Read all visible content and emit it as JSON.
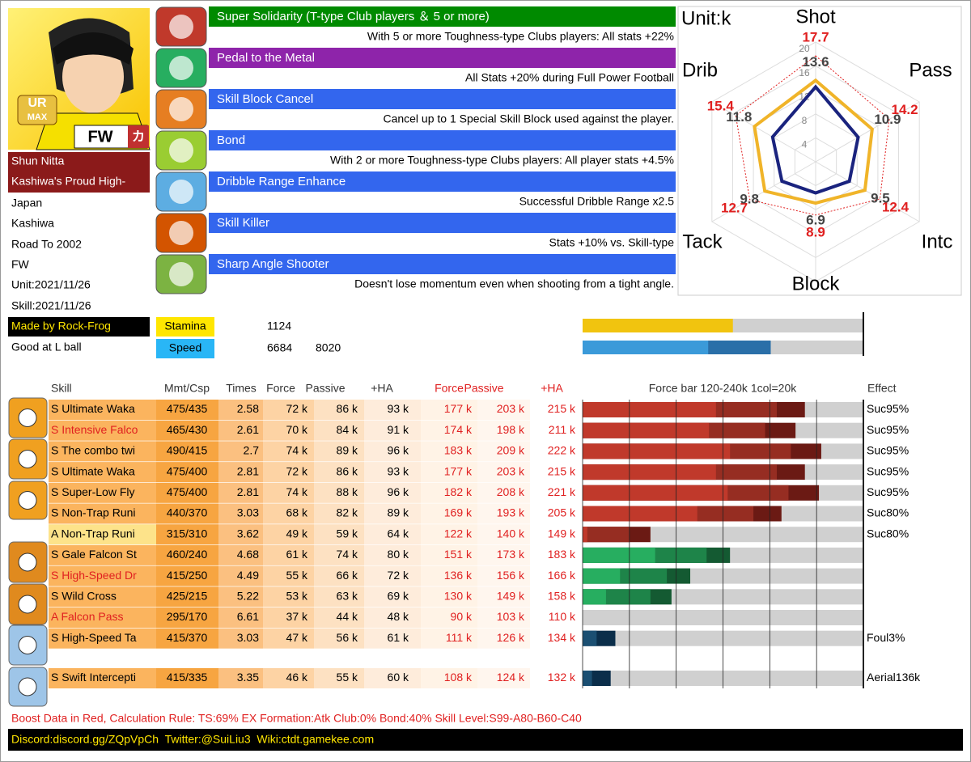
{
  "portrait": {
    "rarity": "UR",
    "badge": "MAX",
    "position": "FW",
    "type_mark": "カ"
  },
  "profile": {
    "name": "Shun Nitta",
    "title": "Kashiwa's Proud High-",
    "nation": "Japan",
    "club": "Kashiwa",
    "event": "Road To 2002",
    "position": "FW",
    "unit_date": "Unit:2021/11/26",
    "skill_date": "Skill:2021/11/26",
    "credit": "Made by Rock-Frog",
    "trait": "Good at L ball"
  },
  "passives": [
    {
      "name": "Super Solidarity (T-type Club players ＆ 5 or more)",
      "desc": "With 5 or more Toughness-type Clubs players: All stats +22%",
      "color": "#008a00"
    },
    {
      "name": "Pedal to the Metal",
      "desc": "All Stats +20% during Full Power Football",
      "color": "#8e24aa"
    },
    {
      "name": "Skill Block Cancel",
      "desc": "Cancel up to 1 Special Skill Block used against the player.",
      "color": "#3366ee"
    },
    {
      "name": "Bond",
      "desc": "With 2 or more Toughness-type Clubs players: All player stats +4.5%",
      "color": "#3366ee"
    },
    {
      "name": "Dribble Range Enhance",
      "desc": "Successful Dribble Range x2.5",
      "color": "#3366ee"
    },
    {
      "name": "Skill Killer",
      "desc": "Stats +10% vs. Skill-type",
      "color": "#3366ee"
    },
    {
      "name": "Sharp Angle Shooter",
      "desc": "Doesn't lose momentum even when shooting from a tight angle.",
      "color": "#3366ee"
    }
  ],
  "radar": {
    "type": "radar",
    "unit_label": "Unit:k",
    "axes": [
      "Shot",
      "Pass",
      "Intc",
      "Block",
      "Tack",
      "Drib"
    ],
    "ylim": [
      0,
      20
    ],
    "yticks": [
      4,
      8,
      12,
      16,
      20
    ],
    "series": [
      {
        "color": "#e02020",
        "dashed": true,
        "values": [
          17.7,
          14.2,
          12.4,
          8.9,
          12.7,
          15.4
        ]
      },
      {
        "color": "#f0b429",
        "values": [
          13.6,
          10.9,
          9.5,
          6.9,
          9.8,
          11.8
        ]
      },
      {
        "color": "#1a237e",
        "values": [
          12.5,
          8.2,
          6.5,
          5.2,
          6.5,
          8.3
        ]
      }
    ]
  },
  "stats": {
    "stamina": {
      "label": "Stamina",
      "values": [
        1124
      ],
      "xlim": [
        0,
        2100
      ],
      "colors": [
        "#f1c40f"
      ]
    },
    "speed": {
      "label": "Speed",
      "values": [
        6684,
        8020
      ],
      "xlim": [
        4000,
        10000
      ],
      "colors": [
        "#3b9ad9",
        "#2a6fa8"
      ]
    }
  },
  "skills": {
    "headers": [
      "Skill",
      "Mmt/Csp",
      "Times",
      "Force",
      "Passive",
      "+HA",
      "Force",
      "Passive",
      "+HA",
      "Force bar 120-240k 1col=20k",
      "Effect"
    ],
    "bar_xlim": [
      120,
      240
    ],
    "bar_ticks": [
      120,
      140,
      160,
      180,
      200,
      220,
      240
    ],
    "rows": [
      {
        "skill": "S Ultimate Waka",
        "mmt": "475/435",
        "times": 2.58,
        "base_labels": [
          "72 k",
          "86 k",
          "93 k"
        ],
        "boost": [
          177,
          203,
          215
        ],
        "boost_labels": [
          "177 k",
          "203 k",
          "215 k"
        ],
        "effect": "Suc95%",
        "name_color": "#000000",
        "name_bg": "#fbb45e",
        "bar_colors": [
          "#c0392b",
          "#962d22",
          "#6b1a14"
        ]
      },
      {
        "skill": "S Intensive Falco",
        "mmt": "465/430",
        "times": 2.61,
        "base_labels": [
          "70 k",
          "84 k",
          "91 k"
        ],
        "boost": [
          174,
          198,
          211
        ],
        "boost_labels": [
          "174 k",
          "198 k",
          "211 k"
        ],
        "effect": "Suc95%",
        "name_color": "#e02020",
        "name_bg": "#fbb45e",
        "bar_colors": [
          "#c0392b",
          "#962d22",
          "#6b1a14"
        ]
      },
      {
        "skill": "S The combo twi",
        "mmt": "490/415",
        "times": 2.7,
        "base_labels": [
          "74 k",
          "89 k",
          "96 k"
        ],
        "boost": [
          183,
          209,
          222
        ],
        "boost_labels": [
          "183 k",
          "209 k",
          "222 k"
        ],
        "effect": "Suc95%",
        "name_color": "#000000",
        "name_bg": "#fbb45e",
        "bar_colors": [
          "#c0392b",
          "#962d22",
          "#6b1a14"
        ]
      },
      {
        "skill": "S Ultimate Waka",
        "mmt": "475/400",
        "times": 2.81,
        "base_labels": [
          "72 k",
          "86 k",
          "93 k"
        ],
        "boost": [
          177,
          203,
          215
        ],
        "boost_labels": [
          "177 k",
          "203 k",
          "215 k"
        ],
        "effect": "Suc95%",
        "name_color": "#000000",
        "name_bg": "#fbb45e",
        "bar_colors": [
          "#c0392b",
          "#962d22",
          "#6b1a14"
        ]
      },
      {
        "skill": "S Super-Low Fly",
        "mmt": "475/400",
        "times": 2.81,
        "base_labels": [
          "74 k",
          "88 k",
          "96 k"
        ],
        "boost": [
          182,
          208,
          221
        ],
        "boost_labels": [
          "182 k",
          "208 k",
          "221 k"
        ],
        "effect": "Suc95%",
        "name_color": "#000000",
        "name_bg": "#fbb45e",
        "bar_colors": [
          "#c0392b",
          "#962d22",
          "#6b1a14"
        ]
      },
      {
        "skill": "S Non-Trap Runi",
        "mmt": "440/370",
        "times": 3.03,
        "base_labels": [
          "68 k",
          "82 k",
          "89 k"
        ],
        "boost": [
          169,
          193,
          205
        ],
        "boost_labels": [
          "169 k",
          "193 k",
          "205 k"
        ],
        "effect": "Suc80%",
        "name_color": "#000000",
        "name_bg": "#fbb45e",
        "bar_colors": [
          "#c0392b",
          "#962d22",
          "#6b1a14"
        ]
      },
      {
        "skill": "A Non-Trap Runi",
        "mmt": "315/310",
        "times": 3.62,
        "base_labels": [
          "49 k",
          "59 k",
          "64 k"
        ],
        "boost": [
          122,
          140,
          149
        ],
        "boost_labels": [
          "122 k",
          "140 k",
          "149 k"
        ],
        "effect": "Suc80%",
        "name_color": "#000000",
        "name_bg": "#fde38a",
        "bar_colors": [
          "#c0392b",
          "#962d22",
          "#6b1a14"
        ]
      },
      {
        "skill": "S Gale Falcon St",
        "mmt": "460/240",
        "times": 4.68,
        "base_labels": [
          "61 k",
          "74 k",
          "80 k"
        ],
        "boost": [
          151,
          173,
          183
        ],
        "boost_labels": [
          "151 k",
          "173 k",
          "183 k"
        ],
        "name_color": "#000000",
        "name_bg": "#fbb45e",
        "bar_colors": [
          "#27ae60",
          "#1e8449",
          "#145a32"
        ]
      },
      {
        "skill": "S High-Speed Dr",
        "mmt": "415/250",
        "times": 4.49,
        "base_labels": [
          "55 k",
          "66 k",
          "72 k"
        ],
        "boost": [
          136,
          156,
          166
        ],
        "boost_labels": [
          "136 k",
          "156 k",
          "166 k"
        ],
        "name_color": "#e02020",
        "name_bg": "#fbb45e",
        "bar_colors": [
          "#27ae60",
          "#1e8449",
          "#145a32"
        ]
      },
      {
        "skill": "S Wild Cross",
        "mmt": "425/215",
        "times": 5.22,
        "base_labels": [
          "53 k",
          "63 k",
          "69 k"
        ],
        "boost": [
          130,
          149,
          158
        ],
        "boost_labels": [
          "130 k",
          "149 k",
          "158 k"
        ],
        "name_color": "#000000",
        "name_bg": "#fbb45e",
        "bar_colors": [
          "#27ae60",
          "#1e8449",
          "#145a32"
        ]
      },
      {
        "skill": "A Falcon Pass",
        "mmt": "295/170",
        "times": 6.61,
        "base_labels": [
          "37 k",
          "44 k",
          "48 k"
        ],
        "boost": [
          90,
          103,
          110
        ],
        "boost_labels": [
          "90 k",
          "103 k",
          "110 k"
        ],
        "name_color": "#e02020",
        "name_bg": "#fbb45e",
        "bar_colors": [
          "#27ae60",
          "#1e8449",
          "#145a32"
        ]
      },
      {
        "skill": "S High-Speed Ta",
        "mmt": "415/370",
        "times": 3.03,
        "base_labels": [
          "47 k",
          "56 k",
          "61 k"
        ],
        "boost": [
          111,
          126,
          134
        ],
        "boost_labels": [
          "111 k",
          "126 k",
          "134 k"
        ],
        "effect": "Foul3%",
        "name_color": "#000000",
        "name_bg": "#fbb45e",
        "bar_colors": [
          "#2e86c1",
          "#1b4f72",
          "#0b2e4a"
        ]
      },
      {
        "skill": "S Swift Intercepti",
        "mmt": "415/335",
        "times": 3.35,
        "base_labels": [
          "46 k",
          "55 k",
          "60 k"
        ],
        "boost": [
          108,
          124,
          132
        ],
        "boost_labels": [
          "108 k",
          "124 k",
          "132 k"
        ],
        "effect": "Aerial136k",
        "name_color": "#000000",
        "name_bg": "#fbb45e",
        "bar_colors": [
          "#2e86c1",
          "#1b4f72",
          "#0b2e4a"
        ]
      }
    ]
  },
  "footer": {
    "note": "Boost Data in Red, Calculation Rule: TS:69% EX Formation:Atk Club:0% Bond:40% Skill Level:S99-A80-B60-C40",
    "links": "Discord:discord.gg/ZQpVpCh  Twitter:@SuiLiu3  Wiki:ctdt.gamekee.com"
  }
}
